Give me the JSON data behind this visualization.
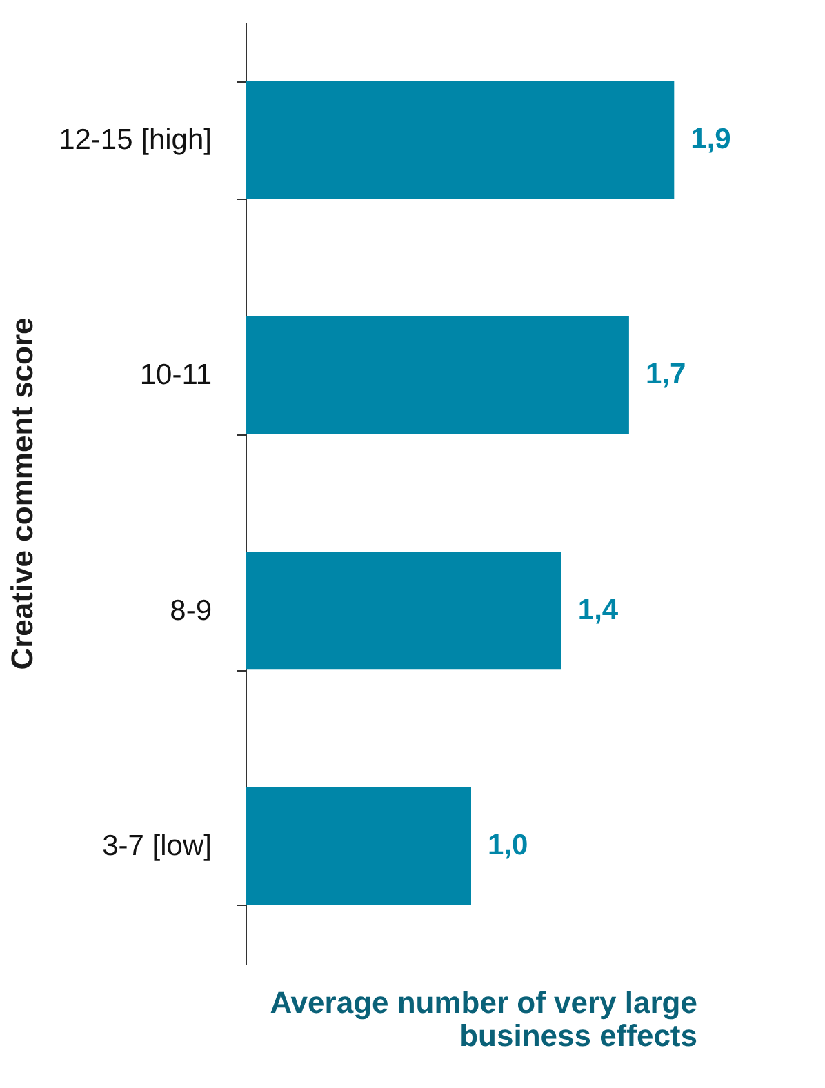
{
  "chart_data": {
    "type": "bar",
    "orientation": "horizontal",
    "categories": [
      "12-15 [high]",
      "10-11",
      "8-9",
      "3-7 [low]"
    ],
    "values": [
      1.9,
      1.7,
      1.4,
      1.0
    ],
    "value_labels": [
      "1,9",
      "1,7",
      "1,4",
      "1,0"
    ],
    "color": "#0086a8",
    "xlabel": "Average number of very large\nbusiness effects",
    "ylabel": "Creative comment score",
    "tick_labels": "y",
    "grid": false
  }
}
